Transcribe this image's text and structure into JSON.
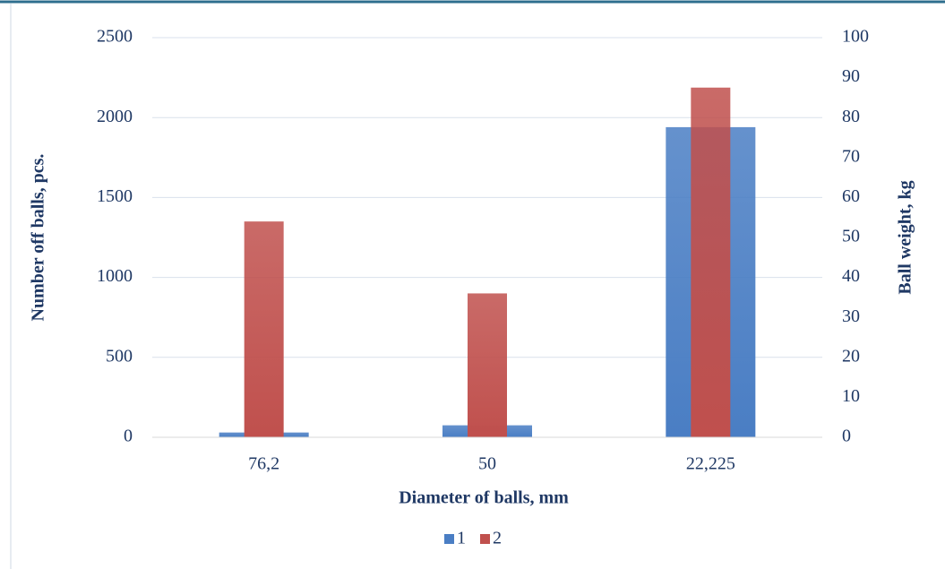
{
  "chart_data": {
    "type": "bar",
    "xlabel": "Diameter of balls, mm",
    "ylabel": "Number off balls, pcs.",
    "y2label": "Ball weight, kg",
    "categories": [
      "76,2",
      "50",
      "22,225"
    ],
    "series": [
      {
        "name": "1",
        "color": "#4a7ec4",
        "values": [
          30,
          75,
          1940
        ]
      },
      {
        "name": "2",
        "color": "#c0504d",
        "values": [
          54,
          36,
          87.5
        ],
        "axis": "y2"
      }
    ],
    "ylim": [
      0,
      2500
    ],
    "yticks": [
      0,
      500,
      1000,
      1500,
      2000,
      2500
    ],
    "y2lim": [
      0,
      100
    ],
    "y2ticks": [
      0,
      10,
      20,
      30,
      40,
      50,
      60,
      70,
      80,
      90,
      100
    ],
    "grid": true,
    "legend": "bottom"
  }
}
